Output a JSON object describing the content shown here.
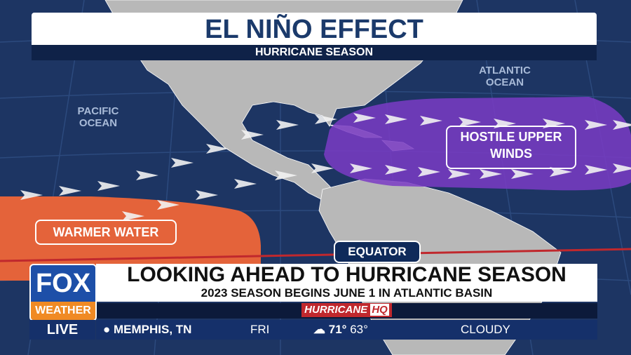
{
  "header": {
    "title": "EL NIÑO EFFECT",
    "subtitle": "HURRICANE SEASON"
  },
  "map": {
    "ocean_labels": {
      "atlantic": [
        "ATLANTIC",
        "OCEAN"
      ],
      "pacific": [
        "PACIFIC",
        "OCEAN"
      ]
    },
    "callouts": {
      "hostile": [
        "HOSTILE UPPER",
        "WINDS"
      ],
      "warmer": "WARMER WATER",
      "equator": "EQUATOR"
    }
  },
  "lower_third": {
    "headline": "LOOKING AHEAD TO HURRICANE SEASON",
    "subheadline": "2023 SEASON BEGINS JUNE 1 IN ATLANTIC BASIN",
    "brand": {
      "name": "HURRICANE",
      "badge": "HQ"
    }
  },
  "logo": {
    "network": "FOX",
    "sub": "WEATHER",
    "status": "LIVE"
  },
  "ticker": {
    "location": "MEMPHIS, TN",
    "day": "FRI",
    "high": "71°",
    "low": "63°",
    "condition": "CLOUDY"
  }
}
